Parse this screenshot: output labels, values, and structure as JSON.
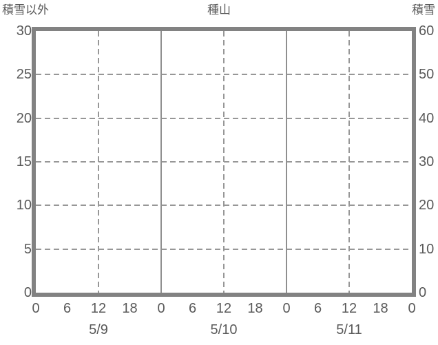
{
  "header": {
    "left_axis_title": "積雪以外",
    "chart_title": "種山",
    "right_axis_title": "積雪"
  },
  "colors": {
    "background": "#ffffff",
    "frame": "#828282",
    "grid_dashed": "#979797",
    "grid_solid": "#8f8f8f",
    "text": "#595959"
  },
  "chart_data": {
    "type": "line",
    "title": "種山",
    "left_axis": {
      "label": "積雪以外",
      "ticks": [
        "30",
        "25",
        "20",
        "15",
        "10",
        "5",
        "0"
      ],
      "range": [
        0,
        30
      ]
    },
    "right_axis": {
      "label": "積雪",
      "ticks": [
        "60",
        "50",
        "40",
        "30",
        "20",
        "10",
        "0"
      ],
      "range": [
        0,
        60
      ]
    },
    "x_axis": {
      "hour_tick_labels": [
        "0",
        "6",
        "12",
        "18",
        "0",
        "6",
        "12",
        "18",
        "0",
        "6",
        "12",
        "18",
        "0"
      ],
      "hour_tick_values": [
        0,
        6,
        12,
        18,
        24,
        30,
        36,
        42,
        48,
        54,
        60,
        66,
        72
      ],
      "day_labels": [
        "5/9",
        "5/10",
        "5/11"
      ],
      "day_label_hours": [
        12,
        36,
        60
      ],
      "range_hours": [
        0,
        72
      ],
      "dashed_gridline_hours": [
        12,
        36,
        60
      ],
      "solid_gridline_hours": [
        24,
        48
      ]
    },
    "horizontal_gridline_values": [
      25,
      20,
      15,
      10,
      5
    ],
    "grid": "dashed",
    "legend": "none",
    "series": []
  }
}
